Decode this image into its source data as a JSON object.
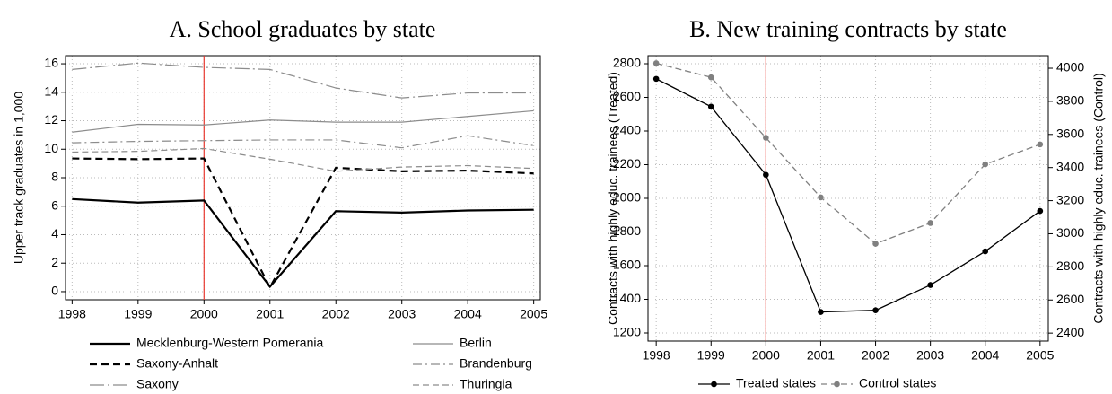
{
  "chart_data": [
    {
      "type": "line",
      "title": "A. School graduates by state",
      "ylabel": "Upper track graduates in 1,000",
      "x": [
        1998,
        1999,
        2000,
        2001,
        2002,
        2003,
        2004,
        2005
      ],
      "xlim": [
        1997.9,
        2005.1
      ],
      "xticks": [
        1998,
        1999,
        2000,
        2001,
        2002,
        2003,
        2004,
        2005
      ],
      "ylim": [
        -0.57,
        16.57
      ],
      "yticks": [
        0,
        2,
        4,
        6,
        8,
        10,
        12,
        14,
        16
      ],
      "grid": true,
      "vline": 2000,
      "vline_color": "#e8382f",
      "legend": "bottom",
      "series": [
        {
          "name": "Mecklenburg-Western Pomerania",
          "color": "#000000",
          "width": 2.2,
          "dash": "none",
          "values": [
            6.5,
            6.25,
            6.4,
            0.35,
            5.65,
            5.55,
            5.7,
            5.75
          ]
        },
        {
          "name": "Berlin",
          "color": "#8c8c8c",
          "width": 1.2,
          "dash": "none",
          "values": [
            11.2,
            11.75,
            11.7,
            12.05,
            11.9,
            11.9,
            12.3,
            12.7
          ]
        },
        {
          "name": "Saxony-Anhalt",
          "color": "#000000",
          "width": 2.2,
          "dash": "8 5",
          "values": [
            9.35,
            9.3,
            9.35,
            0.3,
            8.7,
            8.45,
            8.5,
            8.3
          ]
        },
        {
          "name": "Brandenburg",
          "color": "#8c8c8c",
          "width": 1.2,
          "dash": "10 4 2 4",
          "values": [
            10.45,
            10.55,
            10.6,
            10.65,
            10.65,
            10.1,
            10.95,
            10.25
          ]
        },
        {
          "name": "Saxony",
          "color": "#8c8c8c",
          "width": 1.2,
          "dash": "16 4 2 4",
          "values": [
            15.6,
            16.05,
            15.75,
            15.6,
            14.3,
            13.6,
            13.95,
            13.95
          ]
        },
        {
          "name": "Thuringia",
          "color": "#8c8c8c",
          "width": 1.2,
          "dash": "7 4",
          "values": [
            9.8,
            9.85,
            10.05,
            9.3,
            8.45,
            8.75,
            8.85,
            8.65
          ]
        }
      ]
    },
    {
      "type": "line",
      "title": "B. New training contracts by state",
      "ylabel": "Contracts with highly educ. trainees (Treated)",
      "y2label": "Contracts with highly educ. trainees (Control)",
      "x": [
        1998,
        1999,
        2000,
        2001,
        2002,
        2003,
        2004,
        2005
      ],
      "xlim": [
        1997.85,
        2005.15
      ],
      "xticks": [
        1998,
        1999,
        2000,
        2001,
        2002,
        2003,
        2004,
        2005
      ],
      "ylim": [
        1152,
        2848
      ],
      "yticks": [
        1200,
        1400,
        1600,
        1800,
        2000,
        2200,
        2400,
        2600,
        2800
      ],
      "y2lim": [
        2352,
        4076
      ],
      "y2ticks": [
        2400,
        2600,
        2800,
        3000,
        3200,
        3400,
        3600,
        3800,
        4000
      ],
      "grid": true,
      "vline": 2000,
      "vline_color": "#e8382f",
      "legend": "bottom",
      "markers": true,
      "series": [
        {
          "name": "Treated states",
          "color": "#000000",
          "width": 1.3,
          "dash": "none",
          "values": [
            2710,
            2545,
            2140,
            1325,
            1335,
            1485,
            1685,
            1925
          ]
        },
        {
          "name": "Control states",
          "color": "#808080",
          "width": 1.3,
          "dash": "7 4",
          "axis": "y2",
          "values": [
            4030,
            3945,
            3580,
            3220,
            2940,
            3065,
            3420,
            3540
          ]
        }
      ]
    }
  ]
}
